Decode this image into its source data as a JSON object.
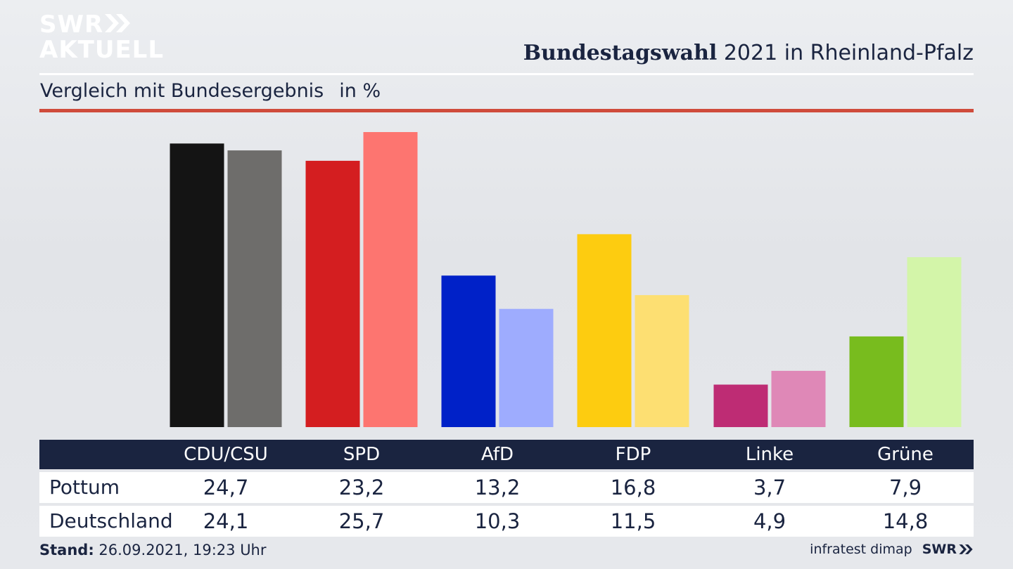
{
  "brand": {
    "line1": "SWR",
    "line2": "AKTUELL"
  },
  "header": {
    "title_bold": "Bundestagswahl",
    "title_rest": "2021 in Rheinland-Pfalz",
    "subtitle": "Vergleich mit Bundesergebnis",
    "unit": "in %"
  },
  "colors": {
    "navy": "#1a2440",
    "accent_red_rule": "#cf4b3b",
    "parties": {
      "CDU/CSU": [
        "#141414",
        "#6e6d6b"
      ],
      "SPD": [
        "#d41e20",
        "#fd7570"
      ],
      "AfD": [
        "#0021c8",
        "#9eacfe"
      ],
      "FDP": [
        "#fdcc10",
        "#fddf72"
      ],
      "Linke": [
        "#be2c74",
        "#df88b7"
      ],
      "Grüne": [
        "#78bc1e",
        "#d3f5a9"
      ]
    }
  },
  "chart_data": {
    "type": "bar",
    "categories": [
      "CDU/CSU",
      "SPD",
      "AfD",
      "FDP",
      "Linke",
      "Grüne"
    ],
    "series": [
      {
        "name": "Pottum",
        "values": [
          24.7,
          23.2,
          13.2,
          16.8,
          3.7,
          7.9
        ]
      },
      {
        "name": "Deutschland",
        "values": [
          24.1,
          25.7,
          10.3,
          11.5,
          4.9,
          14.8
        ]
      }
    ],
    "title": "Bundestagswahl 2021 in Rheinland-Pfalz",
    "subtitle": "Vergleich mit Bundesergebnis",
    "ylabel": "in %",
    "ylim": [
      0,
      25.7
    ],
    "grid": false
  },
  "table": {
    "headers": [
      "CDU/CSU",
      "SPD",
      "AfD",
      "FDP",
      "Linke",
      "Grüne"
    ],
    "rows": [
      {
        "label": "Pottum",
        "values": [
          "24,7",
          "23,2",
          "13,2",
          "16,8",
          "3,7",
          "7,9"
        ]
      },
      {
        "label": "Deutschland",
        "values": [
          "24,1",
          "25,7",
          "10,3",
          "11,5",
          "4,9",
          "14,8"
        ]
      }
    ]
  },
  "footer": {
    "stand_label": "Stand:",
    "stand_value": "26.09.2021, 19:23 Uhr",
    "source": "infratest dimap",
    "brand": "SWR"
  }
}
